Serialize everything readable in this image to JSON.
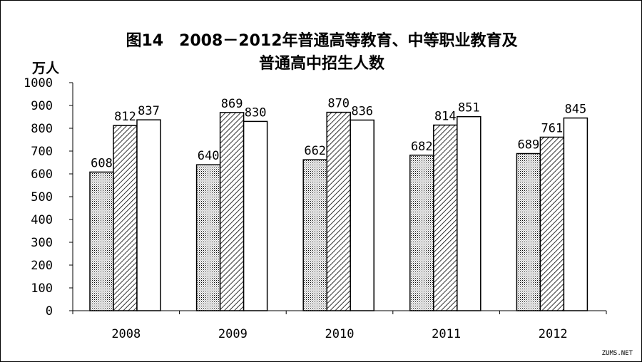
{
  "chart_data": {
    "type": "bar",
    "title": "图14　2008－2012年普通高等教育、中等职业教育及",
    "subtitle": "普通高中招生人数",
    "ylabel": "万人",
    "xlabel": "",
    "categories": [
      "2008",
      "2009",
      "2010",
      "2011",
      "2012"
    ],
    "series": [
      {
        "values": [
          608,
          640,
          662,
          682,
          689
        ],
        "pattern": "dotted"
      },
      {
        "values": [
          812,
          869,
          870,
          814,
          761
        ],
        "pattern": "hatched"
      },
      {
        "values": [
          837,
          830,
          836,
          851,
          845
        ],
        "pattern": "white"
      }
    ],
    "ylim": [
      0,
      1000
    ],
    "yticks": [
      "0",
      "100",
      "200",
      "300",
      "400",
      "500",
      "600",
      "700",
      "800",
      "900",
      "1000"
    ],
    "grid": false,
    "legend": "none"
  },
  "watermark": "ZUMS.NET",
  "colors": {
    "bar_edge": "#000000",
    "background": "#ffffff"
  }
}
